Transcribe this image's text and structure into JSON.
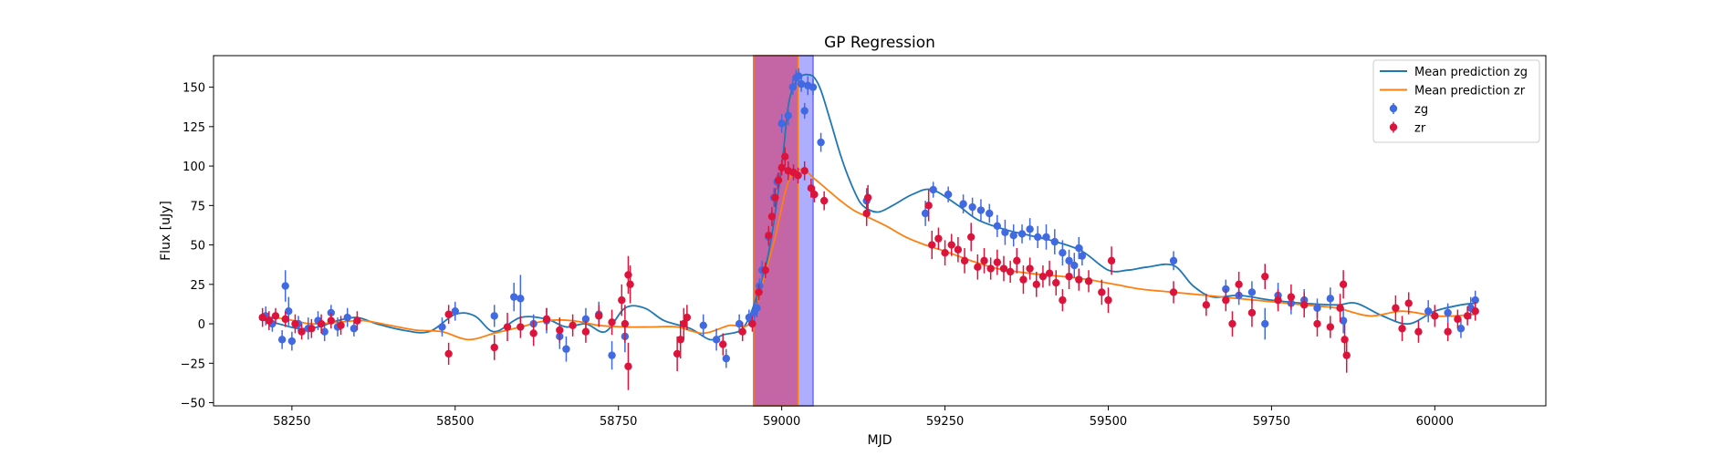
{
  "chart_data": {
    "type": "line",
    "title": "GP Regression",
    "xlabel": "MJD",
    "ylabel": "Flux [uJy]",
    "xlim": [
      58130,
      60170
    ],
    "ylim": [
      -52,
      170
    ],
    "x_ticks": [
      58250,
      58500,
      58750,
      59000,
      59250,
      59500,
      59750,
      60000
    ],
    "y_ticks": [
      -50,
      -25,
      0,
      25,
      50,
      75,
      100,
      125,
      150
    ],
    "grid": false,
    "legend_position": "top-right",
    "legend": [
      {
        "label": "Mean prediction zg",
        "kind": "line",
        "color": "#1f77b4"
      },
      {
        "label": "Mean prediction zr",
        "kind": "line",
        "color": "#ff7f0e"
      },
      {
        "label": "zg",
        "kind": "errorbar",
        "color": "#4169e1"
      },
      {
        "label": "zr",
        "kind": "errorbar",
        "color": "#dc143c"
      }
    ],
    "spans": [
      {
        "x0": 58957,
        "x1": 59048,
        "color": "#6b6bff",
        "opacity": 0.55,
        "edge": "#6b6bff"
      },
      {
        "x0": 58957,
        "x1": 59025,
        "color": "#d2366a",
        "opacity": 0.6,
        "edge": "#ff7f0e"
      }
    ],
    "series": [
      {
        "name": "Mean prediction zg",
        "color": "#1f77b4",
        "x": [
          58200,
          58230,
          58260,
          58290,
          58320,
          58350,
          58380,
          58420,
          58460,
          58500,
          58530,
          58560,
          58600,
          58640,
          58670,
          58700,
          58730,
          58760,
          58790,
          58820,
          58860,
          58890,
          58910,
          58940,
          58960,
          58980,
          59000,
          59010,
          59020,
          59030,
          59040,
          59050,
          59060,
          59075,
          59090,
          59105,
          59120,
          59135,
          59150,
          59170,
          59200,
          59230,
          59270,
          59300,
          59340,
          59380,
          59420,
          59460,
          59500,
          59530,
          59560,
          59600,
          59630,
          59660,
          59700,
          59750,
          59800,
          59850,
          59880,
          59920,
          59960,
          60000,
          60040,
          60062
        ],
        "y": [
          3,
          0,
          -3,
          -2,
          2,
          4,
          0,
          -4,
          -5,
          6,
          5,
          -5,
          4,
          3,
          -2,
          0,
          -5,
          10,
          10,
          2,
          -3,
          -10,
          -7,
          -3,
          15,
          45,
          100,
          138,
          152,
          157,
          158,
          156,
          148,
          128,
          107,
          90,
          77,
          72,
          71,
          75,
          82,
          85,
          75,
          66,
          60,
          56,
          52,
          46,
          34,
          34,
          36,
          37,
          24,
          17,
          18,
          15,
          13,
          12,
          13,
          5,
          0,
          8,
          12,
          13
        ]
      },
      {
        "name": "Mean prediction zr",
        "color": "#ff7f0e",
        "x": [
          58200,
          58240,
          58280,
          58320,
          58360,
          58400,
          58440,
          58480,
          58520,
          58560,
          58600,
          58640,
          58680,
          58720,
          58760,
          58800,
          58840,
          58880,
          58920,
          58950,
          58970,
          58990,
          59010,
          59030,
          59050,
          59070,
          59090,
          59110,
          59130,
          59160,
          59190,
          59220,
          59250,
          59290,
          59330,
          59380,
          59430,
          59470,
          59510,
          59550,
          59600,
          59650,
          59700,
          59750,
          59800,
          59850,
          59900,
          59950,
          60000,
          60030,
          60062
        ],
        "y": [
          5,
          3,
          0,
          1,
          2,
          -1,
          -4,
          -5,
          -10,
          -6,
          -2,
          2,
          2,
          -1,
          -2,
          -2,
          -2,
          -6,
          -1,
          0,
          25,
          55,
          90,
          98,
          92,
          85,
          78,
          72,
          68,
          62,
          55,
          50,
          46,
          40,
          35,
          32,
          30,
          28,
          25,
          22,
          20,
          18,
          16,
          14,
          12,
          10,
          5,
          8,
          5,
          5,
          6
        ]
      }
    ],
    "scatter": [
      {
        "name": "zg",
        "color": "#4169e1",
        "points": [
          [
            58210,
            5,
            6
          ],
          [
            58220,
            0,
            5
          ],
          [
            58235,
            -10,
            6
          ],
          [
            58240,
            24,
            10
          ],
          [
            58245,
            8,
            9
          ],
          [
            58250,
            -11,
            6
          ],
          [
            58260,
            0,
            5
          ],
          [
            58275,
            -3,
            7
          ],
          [
            58290,
            2,
            6
          ],
          [
            58300,
            -5,
            6
          ],
          [
            58310,
            7,
            5
          ],
          [
            58320,
            -2,
            6
          ],
          [
            58335,
            4,
            6
          ],
          [
            58345,
            -3,
            5
          ],
          [
            58480,
            -2,
            6
          ],
          [
            58500,
            8,
            6
          ],
          [
            58560,
            5,
            7
          ],
          [
            58590,
            17,
            9
          ],
          [
            58600,
            16,
            15
          ],
          [
            58620,
            0,
            6
          ],
          [
            58640,
            2,
            8
          ],
          [
            58660,
            -8,
            8
          ],
          [
            58670,
            -16,
            8
          ],
          [
            58700,
            3,
            7
          ],
          [
            58720,
            6,
            8
          ],
          [
            58740,
            -20,
            9
          ],
          [
            58760,
            -8,
            10
          ],
          [
            58880,
            -1,
            7
          ],
          [
            58900,
            -10,
            7
          ],
          [
            58915,
            -22,
            6
          ],
          [
            58935,
            0,
            6
          ],
          [
            58950,
            4,
            5
          ],
          [
            58958,
            7,
            6
          ],
          [
            58962,
            10,
            6
          ],
          [
            58966,
            24,
            5
          ],
          [
            58970,
            34,
            6
          ],
          [
            58980,
            55,
            6
          ],
          [
            58988,
            80,
            6
          ],
          [
            58993,
            90,
            5
          ],
          [
            59000,
            127,
            6
          ],
          [
            59010,
            132,
            6
          ],
          [
            59017,
            150,
            5
          ],
          [
            59022,
            156,
            5
          ],
          [
            59026,
            157,
            5
          ],
          [
            59030,
            152,
            5
          ],
          [
            59035,
            135,
            5
          ],
          [
            59040,
            151,
            6
          ],
          [
            59048,
            150,
            5
          ],
          [
            59060,
            115,
            6
          ],
          [
            59130,
            78,
            8
          ],
          [
            59220,
            70,
            8
          ],
          [
            59232,
            85,
            5
          ],
          [
            59255,
            82,
            5
          ],
          [
            59278,
            76,
            6
          ],
          [
            59292,
            74,
            6
          ],
          [
            59305,
            72,
            7
          ],
          [
            59318,
            70,
            6
          ],
          [
            59330,
            62,
            7
          ],
          [
            59342,
            58,
            8
          ],
          [
            59355,
            56,
            7
          ],
          [
            59368,
            57,
            6
          ],
          [
            59380,
            60,
            7
          ],
          [
            59392,
            55,
            7
          ],
          [
            59405,
            55,
            8
          ],
          [
            59418,
            52,
            8
          ],
          [
            59430,
            45,
            8
          ],
          [
            59440,
            40,
            7
          ],
          [
            59448,
            37,
            8
          ],
          [
            59455,
            48,
            7
          ],
          [
            59460,
            43,
            6
          ],
          [
            59600,
            40,
            6
          ],
          [
            59680,
            22,
            6
          ],
          [
            59700,
            18,
            6
          ],
          [
            59720,
            20,
            7
          ],
          [
            59740,
            0,
            10
          ],
          [
            59760,
            18,
            8
          ],
          [
            59780,
            13,
            7
          ],
          [
            59800,
            15,
            7
          ],
          [
            59820,
            10,
            6
          ],
          [
            59840,
            16,
            7
          ],
          [
            59860,
            2,
            8
          ],
          [
            59990,
            8,
            7
          ],
          [
            60020,
            7,
            6
          ],
          [
            60040,
            -3,
            6
          ],
          [
            60055,
            10,
            7
          ],
          [
            60062,
            15,
            6
          ]
        ]
      },
      {
        "name": "zr",
        "color": "#dc143c",
        "points": [
          [
            58205,
            4,
            6
          ],
          [
            58215,
            2,
            6
          ],
          [
            58225,
            5,
            5
          ],
          [
            58240,
            3,
            5
          ],
          [
            58255,
            0,
            6
          ],
          [
            58265,
            -5,
            5
          ],
          [
            58280,
            -3,
            6
          ],
          [
            58295,
            0,
            6
          ],
          [
            58310,
            2,
            5
          ],
          [
            58325,
            -1,
            6
          ],
          [
            58350,
            2,
            6
          ],
          [
            58490,
            -19,
            7
          ],
          [
            58490,
            6,
            6
          ],
          [
            58560,
            -15,
            8
          ],
          [
            58580,
            -2,
            9
          ],
          [
            58600,
            -2,
            7
          ],
          [
            58620,
            -6,
            8
          ],
          [
            58640,
            3,
            7
          ],
          [
            58660,
            -4,
            8
          ],
          [
            58680,
            -1,
            7
          ],
          [
            58700,
            -5,
            7
          ],
          [
            58720,
            5,
            7
          ],
          [
            58740,
            1,
            8
          ],
          [
            58755,
            15,
            10
          ],
          [
            58765,
            31,
            12
          ],
          [
            58768,
            25,
            12
          ],
          [
            58765,
            -27,
            15
          ],
          [
            58760,
            0,
            12
          ],
          [
            58840,
            -19,
            11
          ],
          [
            58845,
            -10,
            12
          ],
          [
            58850,
            0,
            10
          ],
          [
            58855,
            4,
            8
          ],
          [
            58910,
            -13,
            7
          ],
          [
            58940,
            -5,
            6
          ],
          [
            58955,
            0,
            5
          ],
          [
            58965,
            20,
            5
          ],
          [
            58975,
            34,
            5
          ],
          [
            58980,
            56,
            6
          ],
          [
            58985,
            68,
            6
          ],
          [
            58990,
            80,
            6
          ],
          [
            58995,
            91,
            5
          ],
          [
            59000,
            99,
            5
          ],
          [
            59005,
            106,
            6
          ],
          [
            59010,
            97,
            6
          ],
          [
            59018,
            96,
            5
          ],
          [
            59025,
            94,
            5
          ],
          [
            59035,
            97,
            6
          ],
          [
            59045,
            86,
            6
          ],
          [
            59050,
            82,
            5
          ],
          [
            59065,
            78,
            6
          ],
          [
            59130,
            70,
            8
          ],
          [
            59132,
            80,
            8
          ],
          [
            59225,
            75,
            10
          ],
          [
            59230,
            50,
            9
          ],
          [
            59240,
            54,
            7
          ],
          [
            59250,
            45,
            8
          ],
          [
            59260,
            50,
            7
          ],
          [
            59270,
            47,
            8
          ],
          [
            59280,
            40,
            8
          ],
          [
            59290,
            55,
            9
          ],
          [
            59300,
            36,
            8
          ],
          [
            59310,
            40,
            8
          ],
          [
            59320,
            35,
            7
          ],
          [
            59330,
            39,
            8
          ],
          [
            59340,
            35,
            8
          ],
          [
            59350,
            33,
            7
          ],
          [
            59360,
            40,
            8
          ],
          [
            59370,
            28,
            9
          ],
          [
            59380,
            35,
            7
          ],
          [
            59390,
            25,
            8
          ],
          [
            59400,
            30,
            7
          ],
          [
            59410,
            32,
            8
          ],
          [
            59420,
            26,
            8
          ],
          [
            59430,
            15,
            7
          ],
          [
            59440,
            30,
            8
          ],
          [
            59455,
            28,
            7
          ],
          [
            59470,
            27,
            7
          ],
          [
            59490,
            20,
            8
          ],
          [
            59500,
            15,
            8
          ],
          [
            59505,
            40,
            9
          ],
          [
            59600,
            20,
            7
          ],
          [
            59650,
            12,
            7
          ],
          [
            59680,
            15,
            7
          ],
          [
            59690,
            0,
            8
          ],
          [
            59700,
            25,
            8
          ],
          [
            59720,
            7,
            9
          ],
          [
            59740,
            30,
            8
          ],
          [
            59760,
            15,
            7
          ],
          [
            59780,
            17,
            8
          ],
          [
            59800,
            12,
            8
          ],
          [
            59820,
            0,
            8
          ],
          [
            59840,
            -2,
            7
          ],
          [
            59855,
            10,
            9
          ],
          [
            59860,
            25,
            9
          ],
          [
            59862,
            -10,
            10
          ],
          [
            59865,
            -20,
            11
          ],
          [
            59940,
            10,
            8
          ],
          [
            59950,
            -3,
            8
          ],
          [
            59960,
            13,
            7
          ],
          [
            59975,
            -5,
            7
          ],
          [
            60000,
            5,
            7
          ],
          [
            60020,
            -5,
            6
          ],
          [
            60035,
            3,
            6
          ],
          [
            60050,
            5,
            6
          ],
          [
            60062,
            8,
            6
          ]
        ]
      }
    ]
  }
}
